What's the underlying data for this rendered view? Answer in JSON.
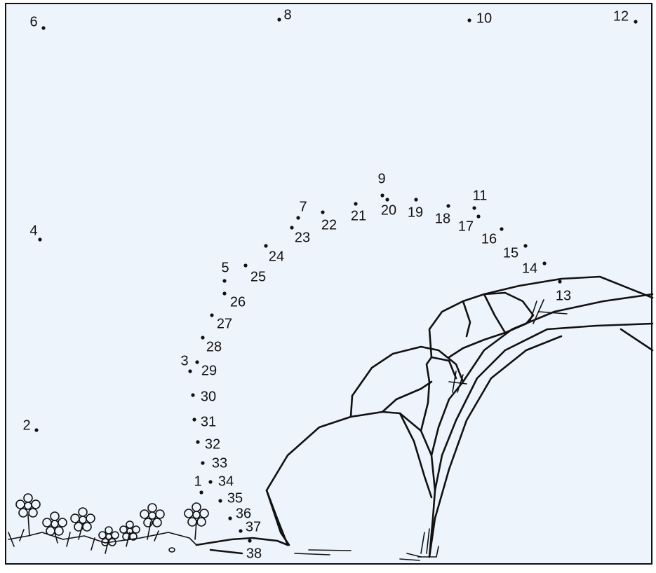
{
  "dots": [
    "1",
    "2",
    "3",
    "4",
    "5",
    "6",
    "7",
    "8",
    "9",
    "10",
    "11",
    "12",
    "13",
    "14",
    "15",
    "16",
    "17",
    "18",
    "19",
    "20",
    "21",
    "22",
    "23",
    "24",
    "25",
    "26",
    "27",
    "28",
    "29",
    "30",
    "31",
    "32",
    "33",
    "34",
    "35",
    "36",
    "37",
    "38"
  ]
}
